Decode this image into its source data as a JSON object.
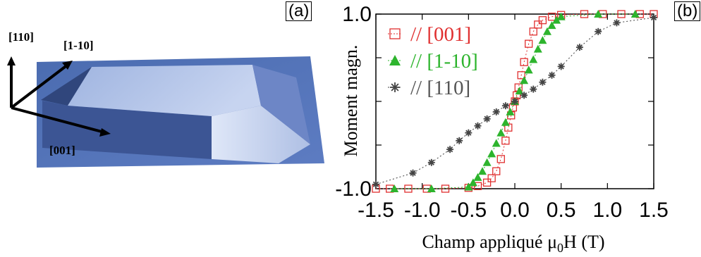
{
  "panel_a": {
    "tag": "(a)",
    "axes": {
      "up": "[110]",
      "diag": "[1-10]",
      "right": "[001]"
    }
  },
  "chart_data": {
    "tag": "(b)",
    "type": "scatter",
    "title": "",
    "xlabel": "Champ appliqué μ0H (T)",
    "ylabel": "Moment magn.",
    "xlim": [
      -1.5,
      1.5
    ],
    "ylim": [
      -1.0,
      1.0
    ],
    "xticks": [
      "-1.5",
      "-1.0",
      "-0.5",
      "0.0",
      "0.5",
      "1.0",
      "1.5"
    ],
    "yticks": [
      "-1.0",
      "1.0"
    ],
    "grid": false,
    "legend": "top-left",
    "series": [
      {
        "name": "// [001]",
        "color": "#e03030",
        "marker": "open-square",
        "x": [
          -1.5,
          -1.35,
          -1.15,
          -0.95,
          -0.75,
          -0.5,
          -0.4,
          -0.3,
          -0.25,
          -0.2,
          -0.15,
          -0.1,
          -0.07,
          -0.04,
          -0.02,
          0,
          0.02,
          0.04,
          0.07,
          0.1,
          0.15,
          0.2,
          0.25,
          0.3,
          0.4,
          0.5,
          0.75,
          0.95,
          1.15,
          1.35,
          1.5
        ],
        "y": [
          -1,
          -1,
          -1,
          -1,
          -1,
          -0.99,
          -0.97,
          -0.93,
          -0.88,
          -0.8,
          -0.66,
          -0.45,
          -0.3,
          -0.16,
          -0.07,
          0,
          0.07,
          0.16,
          0.3,
          0.45,
          0.66,
          0.8,
          0.88,
          0.93,
          0.97,
          0.99,
          1,
          1,
          1,
          1,
          1
        ]
      },
      {
        "name": "// [1-10]",
        "color": "#2db42d",
        "marker": "filled-triangle",
        "x": [
          -1.3,
          -0.9,
          -0.5,
          -0.45,
          -0.4,
          -0.35,
          -0.3,
          -0.25,
          -0.2,
          -0.15,
          -0.1,
          -0.05,
          0,
          0.05,
          0.1,
          0.15,
          0.2,
          0.25,
          0.3,
          0.35,
          0.4,
          0.45,
          0.5,
          0.9,
          1.3
        ],
        "y": [
          -1,
          -1,
          -0.98,
          -0.93,
          -0.87,
          -0.8,
          -0.7,
          -0.6,
          -0.48,
          -0.36,
          -0.24,
          -0.12,
          0,
          0.12,
          0.24,
          0.36,
          0.48,
          0.6,
          0.7,
          0.8,
          0.87,
          0.93,
          0.97,
          1,
          1
        ],
        "label_color": "#2db42d"
      },
      {
        "name": "// [110]",
        "color": "#444444",
        "marker": "asterisk",
        "x": [
          -1.5,
          -1.1,
          -0.9,
          -0.7,
          -0.6,
          -0.5,
          -0.4,
          -0.3,
          -0.2,
          -0.1,
          0,
          0.1,
          0.2,
          0.3,
          0.4,
          0.5,
          0.7,
          0.9,
          1.1,
          1.5
        ],
        "y": [
          -0.95,
          -0.82,
          -0.7,
          -0.55,
          -0.45,
          -0.36,
          -0.28,
          -0.2,
          -0.12,
          -0.05,
          0,
          0.07,
          0.14,
          0.22,
          0.3,
          0.4,
          0.62,
          0.8,
          0.9,
          0.96
        ],
        "label_color": "#555555"
      }
    ]
  }
}
